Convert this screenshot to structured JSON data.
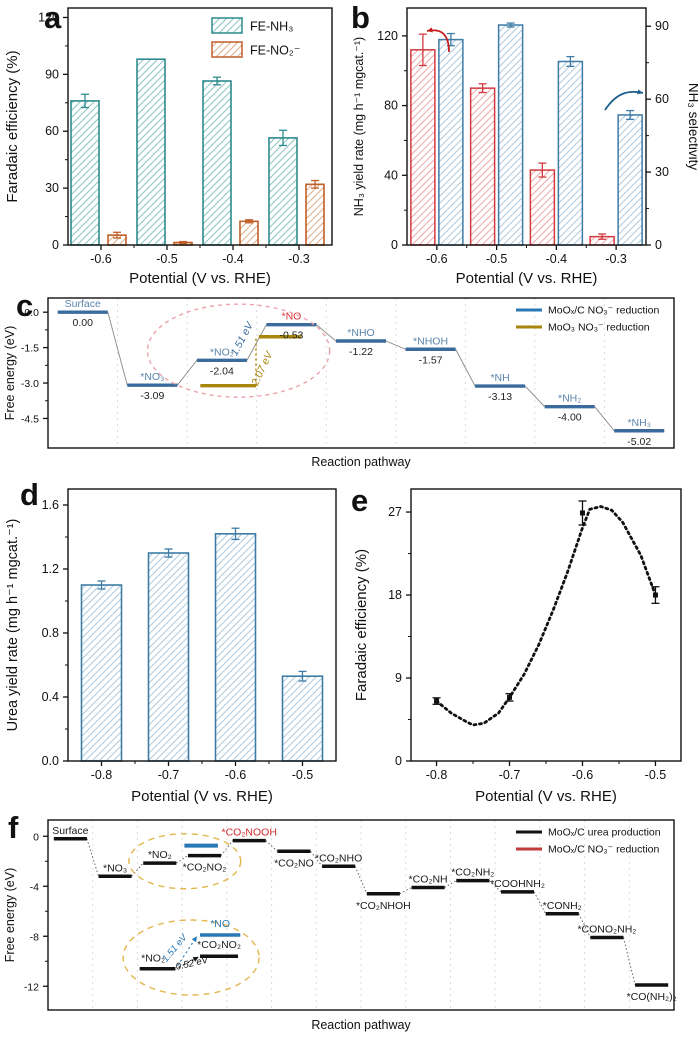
{
  "figure": {
    "background": "#ffffff"
  },
  "chart_data": [
    {
      "id": "a",
      "panel_label": "a",
      "type": "bar",
      "xlabel": "Potential (V vs. RHE)",
      "ylabel": "Faradaic efficiency (%)",
      "categories": [
        "-0.6",
        "-0.5",
        "-0.4",
        "-0.3"
      ],
      "yticks": [
        "0",
        "30",
        "60",
        "90",
        "120"
      ],
      "ylim": [
        0,
        125
      ],
      "series": [
        {
          "name": "FE-NH₃",
          "edge": "#2E8B8D",
          "hatch": "#8CC3C4",
          "values": [
            76,
            98,
            86.5,
            56.5
          ],
          "errors": [
            3.5,
            0,
            2,
            4
          ]
        },
        {
          "name": "FE-NO₂⁻",
          "edge": "#C05F28",
          "hatch": "#DDAE8C",
          "values": [
            5.2,
            1.3,
            12.5,
            32
          ],
          "errors": [
            1.5,
            0.5,
            0.8,
            2
          ]
        }
      ]
    },
    {
      "id": "b",
      "panel_label": "b",
      "type": "dual_bar",
      "xlabel": "Potential (V vs. RHE)",
      "ylabel_left": "NH₃ yield rate (mg h⁻¹ mgcat.⁻¹)",
      "ylabel_right": "NH₃ selectivity",
      "categories": [
        "-0.6",
        "-0.5",
        "-0.4",
        "-0.3"
      ],
      "yticks_left": [
        "0",
        "40",
        "80",
        "120"
      ],
      "ylim_left": [
        0,
        136
      ],
      "yticks_right": [
        "0",
        "30",
        "60",
        "90"
      ],
      "ylim_right": [
        0,
        97.5
      ],
      "series_left": {
        "name": "NH₃ yield rate",
        "edge": "#D13B40",
        "hatch": "#F0A8A8",
        "values": [
          112,
          90,
          43,
          4.8
        ],
        "errors": [
          9,
          2.5,
          4,
          1.5
        ]
      },
      "series_right": {
        "name": "NH₃ selectivity",
        "edge": "#3E7CA6",
        "hatch": "#AECBDE",
        "values": [
          84.5,
          90.5,
          75.5,
          53.5
        ],
        "errors": [
          2.5,
          0.8,
          2,
          1.8
        ]
      },
      "left_arrow_color": "#C41E1E",
      "right_arrow_color": "#1F5F8B"
    },
    {
      "id": "c",
      "panel_label": "c",
      "type": "steps",
      "xlabel": "Reaction pathway",
      "ylabel": "Free energy (eV)",
      "yticks": [
        "0.0",
        "-1.5",
        "-3.0",
        "-4.5"
      ],
      "ylim": [
        -5.75,
        0.6
      ],
      "line_color": "#3A6B9C",
      "label_color": "#5B84AD",
      "connector": "solid",
      "steps": [
        {
          "name": "Surface",
          "e": 0.0,
          "value": "0.00"
        },
        {
          "name": "*NO₃",
          "e": -3.09,
          "value": "-3.09"
        },
        {
          "name": "*NO₂",
          "e": -2.04,
          "value": "-2.04"
        },
        {
          "name": "*NO",
          "e": -0.53,
          "value": "-0.53",
          "name_color": "#E03131"
        },
        {
          "name": "*NHO",
          "e": -1.22,
          "value": "-1.22"
        },
        {
          "name": "*NHOH",
          "e": -1.57,
          "value": "-1.57"
        },
        {
          "name": "*NH",
          "e": -3.13,
          "value": "-3.13"
        },
        {
          "name": "*NH₂",
          "e": -4.0,
          "value": "-4.00"
        },
        {
          "name": "*NH₃",
          "e": -5.02,
          "value": "-5.02"
        }
      ],
      "alt_segments": [
        {
          "x1": 1.69,
          "x2": 2.49,
          "e": -3.11,
          "color": "#A8860B"
        },
        {
          "x1": 2.53,
          "x2": 3.14,
          "e": -1.04,
          "color": "#A8860B"
        }
      ],
      "annotations": [
        {
          "type": "vline",
          "x": 2.49,
          "e1": -3.11,
          "e2": -1.04,
          "color": "#A8860B",
          "dash": "2 3"
        },
        {
          "type": "text",
          "text": "1.51 eV",
          "x": 2.33,
          "e": -1.2,
          "color": "#3A6B9C",
          "rot": -62,
          "italic": true
        },
        {
          "type": "text",
          "text": "2.07 eV",
          "x": 2.62,
          "e": -2.45,
          "color": "#A8860B",
          "rot": -65,
          "italic": true
        },
        {
          "type": "ellipse",
          "x": 2.24,
          "e": -1.63,
          "rx": 1.31,
          "ry": 1.97,
          "color": "#EBA3A9",
          "dash": "4 4"
        }
      ],
      "legend": [
        {
          "label": "MoOₓ/C NO₃⁻ reduction",
          "color": "#2878B5"
        },
        {
          "label": "MoO₃ NO₃⁻ reduction",
          "color": "#A8860B"
        }
      ]
    },
    {
      "id": "d",
      "panel_label": "d",
      "type": "bar",
      "xlabel": "Potential (V vs. RHE)",
      "ylabel": "Urea yield rate (mg h⁻¹ mgcat.⁻¹)",
      "categories": [
        "-0.8",
        "-0.7",
        "-0.6",
        "-0.5"
      ],
      "yticks": [
        "0.0",
        "0.4",
        "0.8",
        "1.2",
        "1.6"
      ],
      "ylim": [
        0,
        1.7
      ],
      "series": [
        {
          "name": "Urea yield rate",
          "edge": "#3E7CA6",
          "hatch": "#AECBDE",
          "values": [
            1.1,
            1.3,
            1.42,
            0.53
          ],
          "errors": [
            0.025,
            0.025,
            0.035,
            0.03
          ]
        }
      ]
    },
    {
      "id": "e",
      "panel_label": "e",
      "type": "curve",
      "xlabel": "Potential (V vs. RHE)",
      "ylabel": "Faradaic efficiency (%)",
      "xticks": [
        "-0.8",
        "-0.7",
        "-0.6",
        "-0.5"
      ],
      "xlim": [
        -0.835,
        -0.465
      ],
      "yticks": [
        "0",
        "9",
        "18",
        "27"
      ],
      "ylim": [
        0,
        29.5
      ],
      "color": "#111111",
      "points": [
        {
          "x": -0.8,
          "y": 6.5,
          "err": 0.35
        },
        {
          "x": -0.7,
          "y": 6.9,
          "err": 0.4
        },
        {
          "x": -0.6,
          "y": 26.9,
          "err": 1.3
        },
        {
          "x": -0.5,
          "y": 18.0,
          "err": 0.9
        }
      ],
      "curve_x": [
        -0.8,
        -0.78,
        -0.76,
        -0.75,
        -0.735,
        -0.715,
        -0.7,
        -0.68,
        -0.66,
        -0.64,
        -0.62,
        -0.6,
        -0.59,
        -0.575,
        -0.56,
        -0.545,
        -0.52,
        -0.5
      ],
      "curve_y": [
        6.5,
        5.2,
        4.3,
        3.9,
        4.1,
        5.2,
        6.9,
        9.4,
        12.6,
        16.4,
        20.6,
        25.3,
        27.3,
        27.6,
        27.2,
        25.9,
        22.3,
        18.0
      ]
    },
    {
      "id": "f",
      "panel_label": "f",
      "type": "steps",
      "xlabel": "Reaction pathway",
      "ylabel": "Free energy (eV)",
      "yticks": [
        "0",
        "-4",
        "-8",
        "-12"
      ],
      "ylim": [
        -13.9,
        1.3
      ],
      "line_color": "#111111",
      "label_color": "#1a1a1a",
      "connector": "dotted",
      "steps": [
        {
          "name": "Surface",
          "e": -0.2,
          "pos": "above"
        },
        {
          "name": "*NO₃",
          "e": -3.2,
          "pos": "above"
        },
        {
          "name": "*NO₂",
          "e": -2.15,
          "pos": "above"
        },
        {
          "name": "*CO₂NO₂",
          "e": -1.55,
          "pos": "below"
        },
        {
          "name": "*CO₂NOOH",
          "e": -0.35,
          "pos": "above",
          "name_color": "#D42A2A"
        },
        {
          "name": "*CO₂NO",
          "e": -1.2,
          "pos": "below"
        },
        {
          "name": "*CO₂NHO",
          "e": -2.4,
          "pos": "above"
        },
        {
          "name": "*CO₂NHOH",
          "e": -4.6,
          "pos": "below"
        },
        {
          "name": "*CO₂NH",
          "e": -4.1,
          "pos": "above"
        },
        {
          "name": "*CO₂NH₂",
          "e": -3.55,
          "pos": "above"
        },
        {
          "name": "*COOHNH₂",
          "e": -4.45,
          "pos": "above"
        },
        {
          "name": "*CONH₂",
          "e": -6.2,
          "pos": "above"
        },
        {
          "name": "*CONO₂NH₂",
          "e": -8.1,
          "pos": "above"
        },
        {
          "name": "*CO(NH₂)₂",
          "e": -11.9,
          "pos": "below"
        }
      ],
      "alt_segments": [
        {
          "x1": 2.55,
          "x2": 3.3,
          "e": -0.75,
          "color": "#2878B5",
          "width": 4
        }
      ],
      "annotations": [
        {
          "type": "ellipse",
          "x": 2.56,
          "e": -2.0,
          "rx": 1.25,
          "ry": 2.2,
          "color": "#E3B64E",
          "dash": "6 5"
        },
        {
          "type": "ellipse",
          "x": 2.7,
          "e": -9.7,
          "rx": 1.52,
          "ry": 3.0,
          "color": "#E3B64E",
          "dash": "6 5"
        }
      ],
      "inset": {
        "segments": [
          {
            "name": "*NO₂",
            "x1": 1.55,
            "x2": 2.35,
            "e": -10.6,
            "color": "#111111",
            "label_dx": -0.1,
            "label_e": -10.0
          },
          {
            "name": "*CO₂NO₂",
            "x1": 2.9,
            "x2": 3.75,
            "e": -9.6,
            "color": "#111111",
            "label_e": -8.95
          },
          {
            "name": "*NO",
            "x1": 2.9,
            "x2": 3.8,
            "e": -7.9,
            "color": "#2878B5",
            "label_e": -7.25
          }
        ],
        "arrows": [
          {
            "x1": 2.4,
            "e1": -10.35,
            "x2": 2.83,
            "e2": -8.0,
            "color": "#2878B5",
            "dash": "2 3",
            "label": "1.51 eV",
            "lx": 2.38,
            "le": -9.1,
            "rot": -50
          },
          {
            "x1": 2.42,
            "e1": -10.5,
            "x2": 2.87,
            "e2": -9.65,
            "color": "#111111",
            "dash": "2 3",
            "label": "0.52 eV",
            "lx": 2.73,
            "le": -10.4,
            "rot": -13
          }
        ]
      },
      "legend": [
        {
          "label": "MoOₓ/C urea production",
          "color": "#111111"
        },
        {
          "label": "MoOₓ/C NO₃⁻ reduction",
          "color": "#C23B3B"
        }
      ]
    }
  ]
}
